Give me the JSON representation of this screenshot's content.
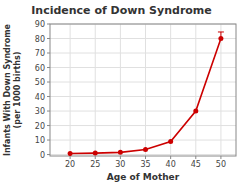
{
  "chart_data": {
    "type": "line",
    "title": "Incidence of Down Syndrome",
    "x_label": "Age of Mother",
    "y_label": "Infants With Down Syndrome\n(per 1000 births)",
    "x": [
      20,
      25,
      30,
      35,
      40,
      45,
      50
    ],
    "series": [
      {
        "name": "Infants With Down Syndrome",
        "color": "#cc0000",
        "marker": "circle",
        "values": [
          0.7,
          1.0,
          1.5,
          3.5,
          9.0,
          30.0,
          80.0
        ],
        "error_up": [
          null,
          null,
          null,
          null,
          null,
          null,
          4.5
        ]
      }
    ],
    "xlim": [
      16,
      53
    ],
    "ylim": [
      -1,
      90
    ],
    "xticks": [
      20,
      25,
      30,
      35,
      40,
      45,
      50
    ],
    "yticks": [
      0,
      10,
      20,
      30,
      40,
      50,
      60,
      70,
      80,
      90
    ],
    "grid": true
  }
}
